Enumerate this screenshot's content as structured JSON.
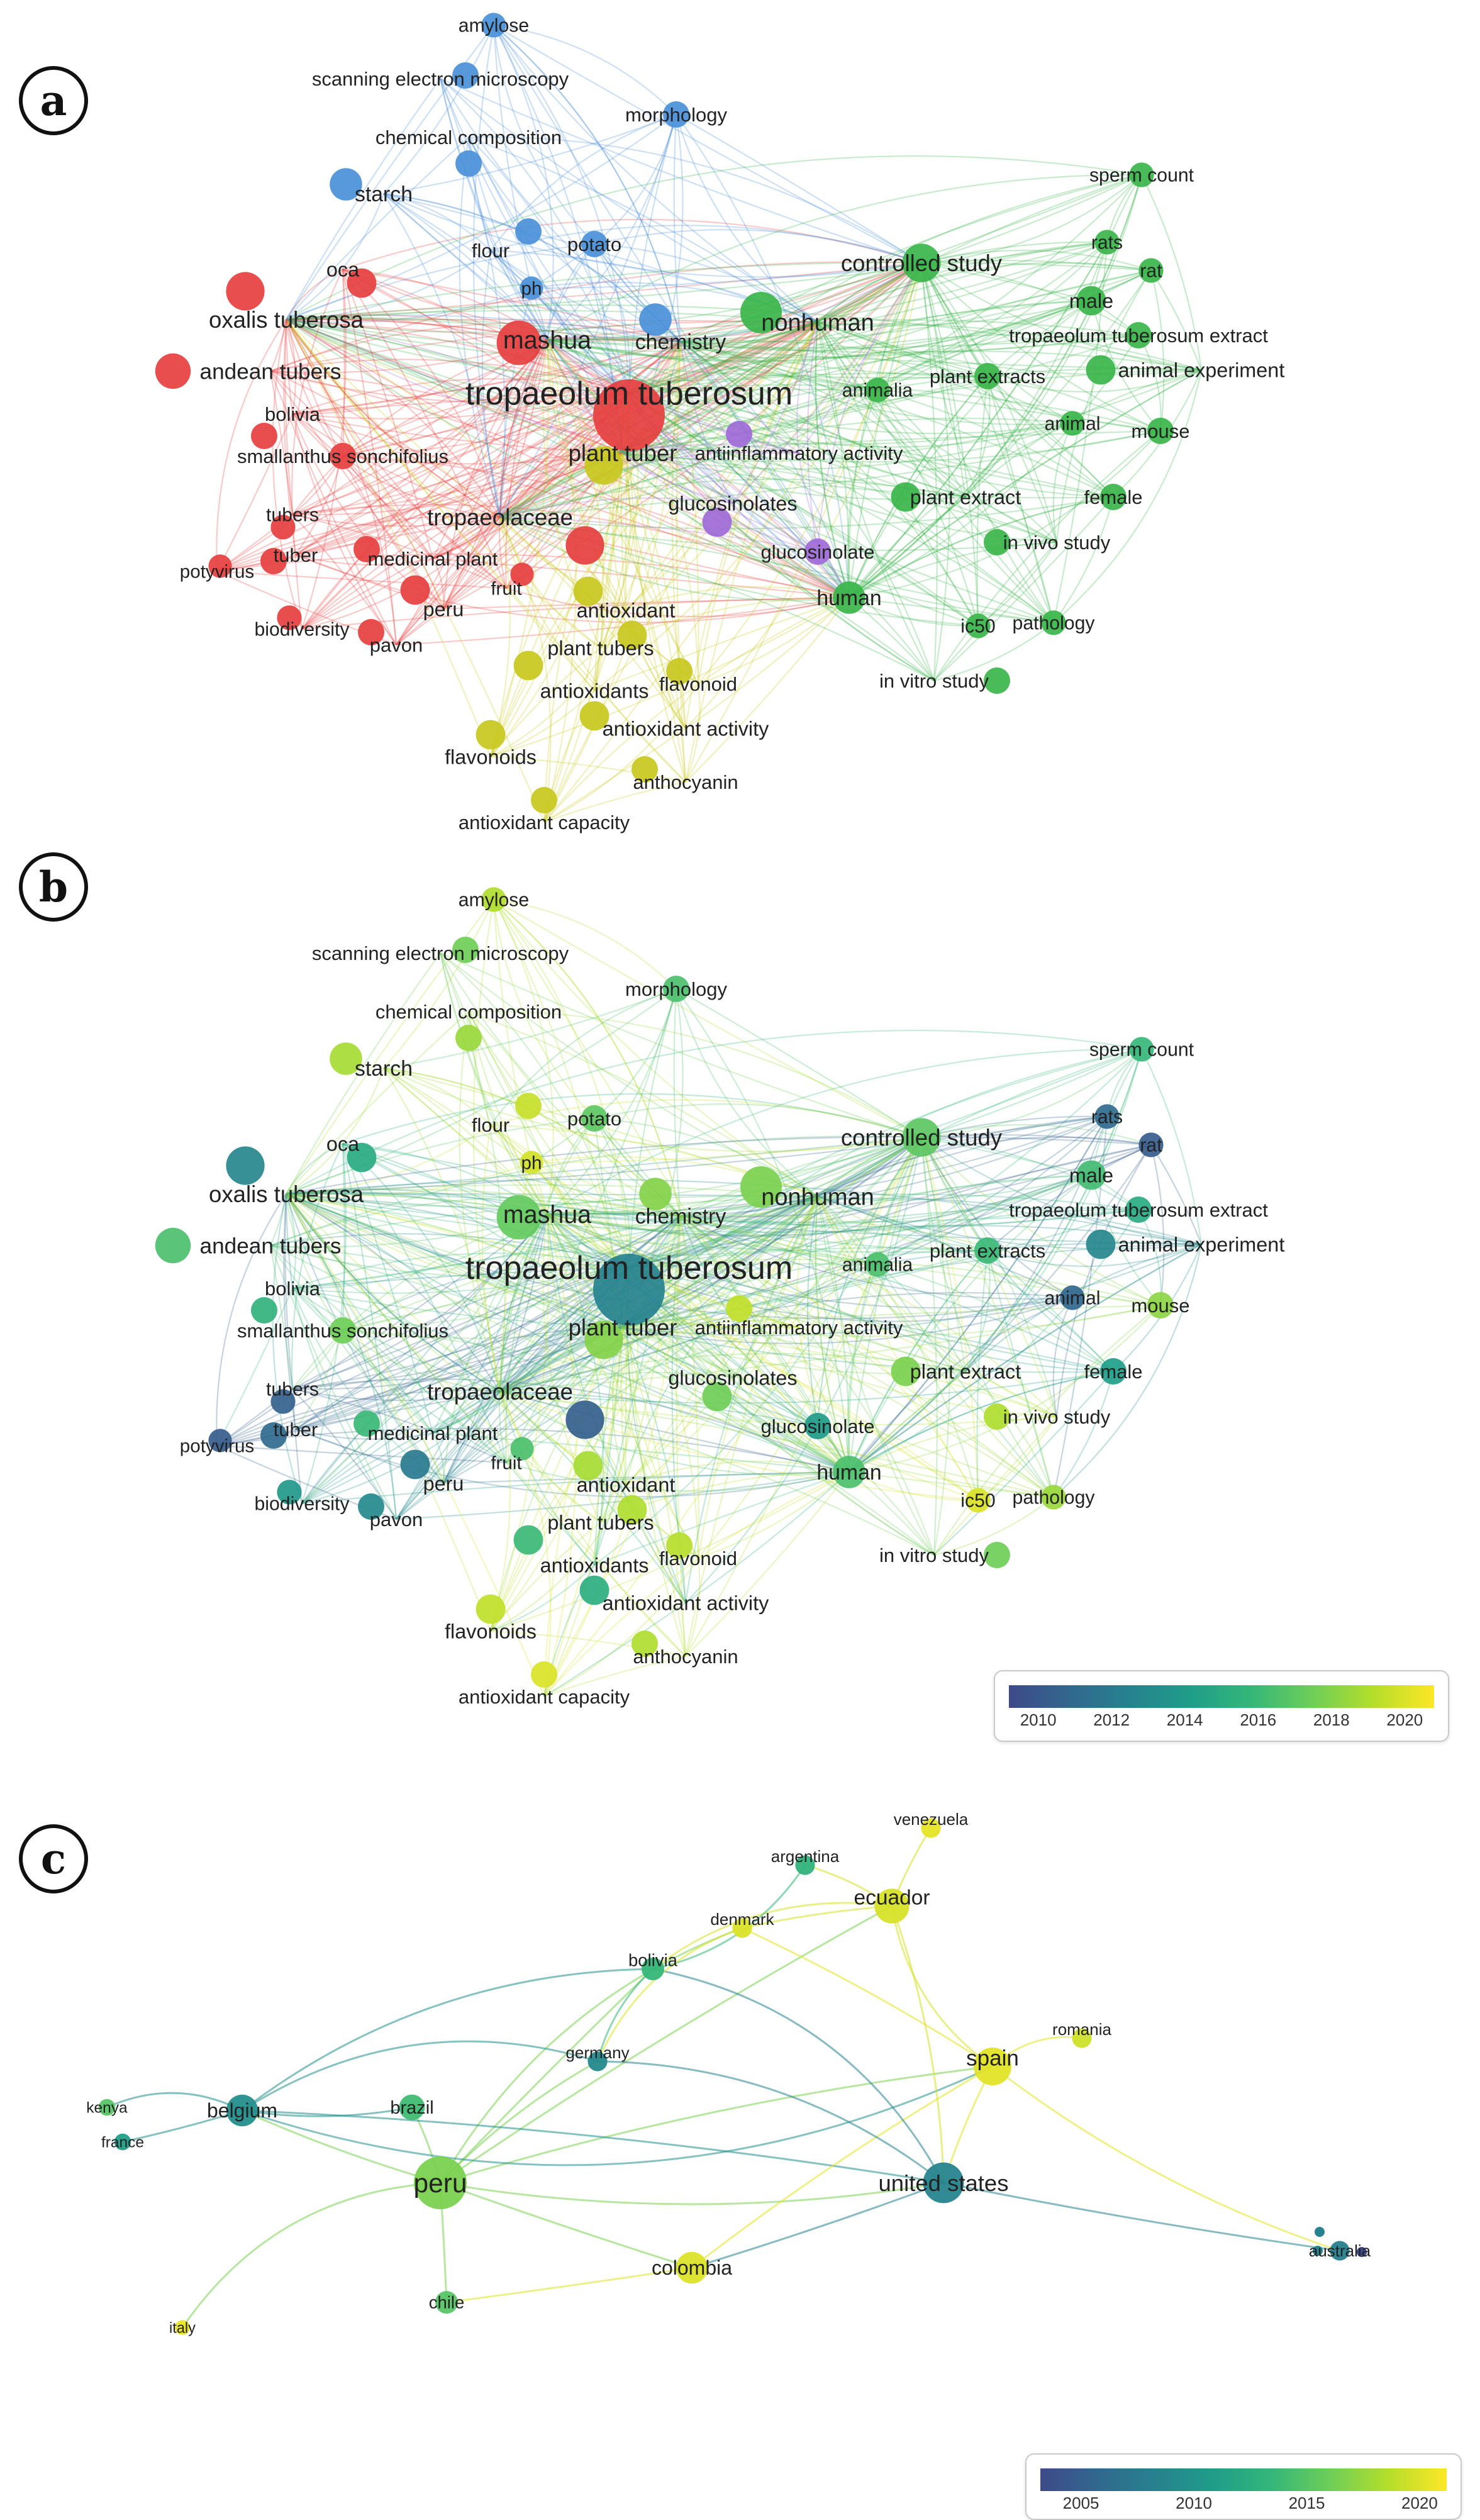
{
  "panels": [
    {
      "id": "a",
      "label": "a",
      "color_mode": "cluster",
      "nodes": [
        {
          "id": "tropaeolum tuberosum",
          "label": "tropaeolum tuberosum",
          "cluster": "red",
          "weight": 1.0
        },
        {
          "id": "mashua",
          "label": "mashua",
          "cluster": "red",
          "weight": 0.55
        },
        {
          "id": "oxalis tuberosa",
          "label": "oxalis tuberosa",
          "cluster": "red",
          "weight": 0.45
        },
        {
          "id": "andean tubers",
          "label": "andean tubers",
          "cluster": "red",
          "weight": 0.4
        },
        {
          "id": "tropaeolaceae",
          "label": "tropaeolaceae",
          "cluster": "red",
          "weight": 0.45
        },
        {
          "id": "oca",
          "label": "oca",
          "cluster": "red",
          "weight": 0.3
        },
        {
          "id": "bolivia",
          "label": "bolivia",
          "cluster": "red",
          "weight": 0.25
        },
        {
          "id": "smallanthus sonchifolius",
          "label": "smallanthus sonchifolius",
          "cluster": "red",
          "weight": 0.25
        },
        {
          "id": "tubers",
          "label": "tubers",
          "cluster": "red",
          "weight": 0.22
        },
        {
          "id": "tuber",
          "label": "tuber",
          "cluster": "red",
          "weight": 0.25
        },
        {
          "id": "potyvirus",
          "label": "potyvirus",
          "cluster": "red",
          "weight": 0.2
        },
        {
          "id": "medicinal plant",
          "label": "medicinal plant",
          "cluster": "red",
          "weight": 0.25
        },
        {
          "id": "peru",
          "label": "peru",
          "cluster": "red",
          "weight": 0.3
        },
        {
          "id": "biodiversity",
          "label": "biodiversity",
          "cluster": "red",
          "weight": 0.22
        },
        {
          "id": "pavon",
          "label": "pavon",
          "cluster": "red",
          "weight": 0.25
        },
        {
          "id": "fruit",
          "label": "fruit",
          "cluster": "red",
          "weight": 0.2
        },
        {
          "id": "plant tuber",
          "label": "plant tuber",
          "cluster": "yellow",
          "weight": 0.45
        },
        {
          "id": "antioxidant",
          "label": "antioxidant",
          "cluster": "yellow",
          "weight": 0.3
        },
        {
          "id": "plant tubers",
          "label": "plant tubers",
          "cluster": "yellow",
          "weight": 0.3
        },
        {
          "id": "antioxidants",
          "label": "antioxidants",
          "cluster": "yellow",
          "weight": 0.3
        },
        {
          "id": "flavonoid",
          "label": "flavonoid",
          "cluster": "yellow",
          "weight": 0.25
        },
        {
          "id": "antioxidant activity",
          "label": "antioxidant activity",
          "cluster": "yellow",
          "weight": 0.3
        },
        {
          "id": "flavonoids",
          "label": "flavonoids",
          "cluster": "yellow",
          "weight": 0.3
        },
        {
          "id": "anthocyanin",
          "label": "anthocyanin",
          "cluster": "yellow",
          "weight": 0.25
        },
        {
          "id": "antioxidant capacity",
          "label": "antioxidant capacity",
          "cluster": "yellow",
          "weight": 0.25
        },
        {
          "id": "amylose",
          "label": "amylose",
          "cluster": "blue",
          "weight": 0.22
        },
        {
          "id": "scanning electron microscopy",
          "label": "scanning electron microscopy",
          "cluster": "blue",
          "weight": 0.25
        },
        {
          "id": "chemical composition",
          "label": "chemical composition",
          "cluster": "blue",
          "weight": 0.25
        },
        {
          "id": "morphology",
          "label": "morphology",
          "cluster": "blue",
          "weight": 0.25
        },
        {
          "id": "starch",
          "label": "starch",
          "cluster": "blue",
          "weight": 0.35
        },
        {
          "id": "flour",
          "label": "flour",
          "cluster": "blue",
          "weight": 0.25
        },
        {
          "id": "potato",
          "label": "potato",
          "cluster": "blue",
          "weight": 0.25
        },
        {
          "id": "ph",
          "label": "ph",
          "cluster": "blue",
          "weight": 0.2
        },
        {
          "id": "chemistry",
          "label": "chemistry",
          "cluster": "blue",
          "weight": 0.35
        },
        {
          "id": "nonhuman",
          "label": "nonhuman",
          "cluster": "green",
          "weight": 0.5
        },
        {
          "id": "controlled study",
          "label": "controlled study",
          "cluster": "green",
          "weight": 0.45
        },
        {
          "id": "sperm count",
          "label": "sperm count",
          "cluster": "green",
          "weight": 0.22
        },
        {
          "id": "rats",
          "label": "rats",
          "cluster": "green",
          "weight": 0.22
        },
        {
          "id": "rat",
          "label": "rat",
          "cluster": "green",
          "weight": 0.22
        },
        {
          "id": "male",
          "label": "male",
          "cluster": "green",
          "weight": 0.3
        },
        {
          "id": "tropaeolum tuberosum extract",
          "label": "tropaeolum tuberosum extract",
          "cluster": "green",
          "weight": 0.25
        },
        {
          "id": "animal experiment",
          "label": "animal experiment",
          "cluster": "green",
          "weight": 0.3
        },
        {
          "id": "animalia",
          "label": "animalia",
          "cluster": "green",
          "weight": 0.22
        },
        {
          "id": "plant extracts",
          "label": "plant extracts",
          "cluster": "green",
          "weight": 0.25
        },
        {
          "id": "animal",
          "label": "animal",
          "cluster": "green",
          "weight": 0.22
        },
        {
          "id": "mouse",
          "label": "mouse",
          "cluster": "green",
          "weight": 0.25
        },
        {
          "id": "plant extract",
          "label": "plant extract",
          "cluster": "green",
          "weight": 0.3
        },
        {
          "id": "female",
          "label": "female",
          "cluster": "green",
          "weight": 0.25
        },
        {
          "id": "in vivo study",
          "label": "in vivo study",
          "cluster": "green",
          "weight": 0.25
        },
        {
          "id": "human",
          "label": "human",
          "cluster": "green",
          "weight": 0.35
        },
        {
          "id": "ic50",
          "label": "ic50",
          "cluster": "green",
          "weight": 0.22
        },
        {
          "id": "pathology",
          "label": "pathology",
          "cluster": "green",
          "weight": 0.22
        },
        {
          "id": "in vitro study",
          "label": "in vitro study",
          "cluster": "green",
          "weight": 0.25
        },
        {
          "id": "antiinflammatory activity",
          "label": "antiinflammatory activity",
          "cluster": "purple",
          "weight": 0.25
        },
        {
          "id": "glucosinolates",
          "label": "glucosinolates",
          "cluster": "purple",
          "weight": 0.3
        },
        {
          "id": "glucosinolate",
          "label": "glucosinolate",
          "cluster": "purple",
          "weight": 0.25
        }
      ],
      "cluster_colors": {
        "red": "#e63f3f",
        "green": "#3ab54a",
        "blue": "#4a90d9",
        "yellow": "#c8c81e",
        "purple": "#a06ad8"
      }
    },
    {
      "id": "b",
      "label": "b",
      "color_mode": "year",
      "colorbar": {
        "ticks": [
          "2010",
          "2012",
          "2014",
          "2016",
          "2018",
          "2020"
        ],
        "range": [
          2009.2,
          2020.8
        ]
      },
      "node_years": {
        "tropaeolum tuberosum": 2012.5,
        "mashua": 2017.2,
        "oxalis tuberosa": 2012.8,
        "andean tubers": 2016.5,
        "tropaeolaceae": 2010.4,
        "oca": 2015.0,
        "bolivia": 2015.5,
        "smallanthus sonchifolius": 2017.5,
        "tubers": 2010.5,
        "tuber": 2011.0,
        "potyvirus": 2010.2,
        "medicinal plant": 2016.0,
        "peru": 2012.0,
        "biodiversity": 2013.8,
        "pavon": 2013.0,
        "fruit": 2016.5,
        "plant tuber": 2018.0,
        "antioxidant": 2018.8,
        "plant tubers": 2019.0,
        "antioxidants": 2016.0,
        "flavonoid": 2019.2,
        "antioxidant activity": 2015.2,
        "flavonoids": 2019.4,
        "anthocyanin": 2019.0,
        "antioxidant capacity": 2020.0,
        "amylose": 2019.0,
        "scanning electron microscopy": 2017.5,
        "chemical composition": 2018.5,
        "morphology": 2016.5,
        "starch": 2018.8,
        "flour": 2019.5,
        "potato": 2017.0,
        "ph": 2019.8,
        "chemistry": 2018.0,
        "nonhuman": 2017.8,
        "controlled study": 2017.0,
        "sperm count": 2015.8,
        "rats": 2011.0,
        "rat": 2010.2,
        "male": 2016.2,
        "tropaeolum tuberosum extract": 2015.0,
        "animal experiment": 2012.8,
        "animalia": 2016.5,
        "plant extracts": 2016.0,
        "animal": 2010.8,
        "mouse": 2018.2,
        "plant extract": 2017.8,
        "female": 2014.2,
        "in vivo study": 2019.0,
        "human": 2016.5,
        "ic50": 2020.0,
        "pathology": 2018.5,
        "in vitro study": 2017.5,
        "antiinflammatory activity": 2019.4,
        "glucosinolates": 2017.5,
        "glucosinolate": 2014.0
      }
    },
    {
      "id": "c",
      "label": "c",
      "color_mode": "year",
      "colorbar": {
        "ticks": [
          "2005",
          "2010",
          "2015",
          "2020"
        ],
        "range": [
          2003.2,
          2021.2
        ]
      },
      "nodes": [
        {
          "id": "venezuela",
          "label": "venezuela",
          "year": 2020.3,
          "weight": 0.2
        },
        {
          "id": "argentina",
          "label": "argentina",
          "year": 2013.0,
          "weight": 0.2
        },
        {
          "id": "ecuador",
          "label": "ecuador",
          "year": 2019.8,
          "weight": 0.45
        },
        {
          "id": "denmark",
          "label": "denmark",
          "year": 2020.0,
          "weight": 0.2
        },
        {
          "id": "bolivia",
          "label": "bolivia",
          "year": 2013.5,
          "weight": 0.25
        },
        {
          "id": "romania",
          "label": "romania",
          "year": 2019.5,
          "weight": 0.2
        },
        {
          "id": "spain",
          "label": "spain",
          "year": 2020.2,
          "weight": 0.5
        },
        {
          "id": "germany",
          "label": "germany",
          "year": 2009.0,
          "weight": 0.2
        },
        {
          "id": "kenya",
          "label": "kenya",
          "year": 2015.0,
          "weight": 0.15
        },
        {
          "id": "belgium",
          "label": "belgium",
          "year": 2009.5,
          "weight": 0.4
        },
        {
          "id": "brazil",
          "label": "brazil",
          "year": 2014.0,
          "weight": 0.3
        },
        {
          "id": "france",
          "label": "france",
          "year": 2011.0,
          "weight": 0.15
        },
        {
          "id": "peru",
          "label": "peru",
          "year": 2016.5,
          "weight": 0.75
        },
        {
          "id": "united states",
          "label": "united states",
          "year": 2008.5,
          "weight": 0.55
        },
        {
          "id": "australia",
          "label": "australia",
          "year": 2008.0,
          "weight": 0.2
        },
        {
          "id": "colombia",
          "label": "colombia",
          "year": 2020.0,
          "weight": 0.4
        },
        {
          "id": "chile",
          "label": "chile",
          "year": 2015.0,
          "weight": 0.25
        },
        {
          "id": "italy",
          "label": "italy",
          "year": 2020.5,
          "weight": 0.12
        }
      ],
      "edges": [
        [
          "peru",
          "belgium"
        ],
        [
          "peru",
          "brazil"
        ],
        [
          "peru",
          "bolivia"
        ],
        [
          "peru",
          "germany"
        ],
        [
          "peru",
          "ecuador"
        ],
        [
          "peru",
          "spain"
        ],
        [
          "peru",
          "united states"
        ],
        [
          "peru",
          "colombia"
        ],
        [
          "peru",
          "chile"
        ],
        [
          "peru",
          "italy"
        ],
        [
          "peru",
          "denmark"
        ],
        [
          "belgium",
          "kenya"
        ],
        [
          "belgium",
          "france"
        ],
        [
          "belgium",
          "brazil"
        ],
        [
          "belgium",
          "bolivia"
        ],
        [
          "belgium",
          "united states"
        ],
        [
          "belgium",
          "germany"
        ],
        [
          "belgium",
          "spain"
        ],
        [
          "ecuador",
          "spain"
        ],
        [
          "ecuador",
          "venezuela"
        ],
        [
          "ecuador",
          "argentina"
        ],
        [
          "ecuador",
          "denmark"
        ],
        [
          "ecuador",
          "united states"
        ],
        [
          "ecuador",
          "bolivia"
        ],
        [
          "spain",
          "romania"
        ],
        [
          "spain",
          "united states"
        ],
        [
          "spain",
          "colombia"
        ],
        [
          "spain",
          "denmark"
        ],
        [
          "spain",
          "australia"
        ],
        [
          "united states",
          "australia"
        ],
        [
          "united states",
          "colombia"
        ],
        [
          "united states",
          "germany"
        ],
        [
          "united states",
          "bolivia"
        ],
        [
          "bolivia",
          "argentina"
        ],
        [
          "bolivia",
          "germany"
        ],
        [
          "colombia",
          "chile"
        ],
        [
          "denmark",
          "germany"
        ]
      ]
    }
  ]
}
